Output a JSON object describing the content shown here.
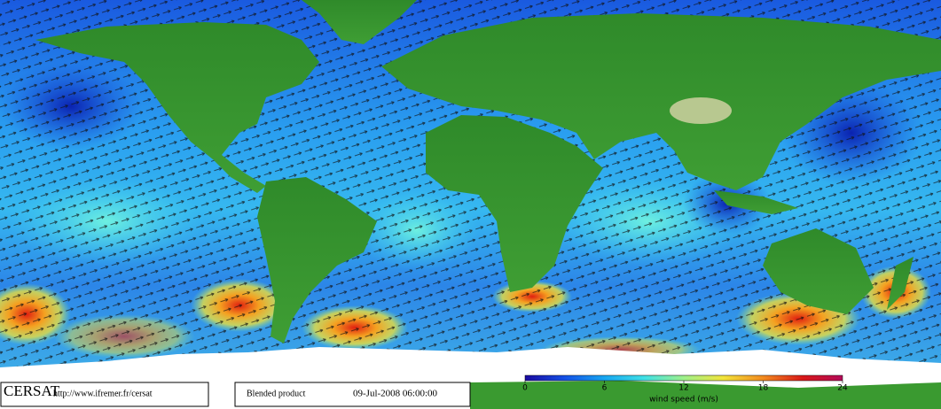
{
  "footer": {
    "brand": "CERSAT",
    "url": "http://www.ifremer.fr/cersat",
    "product": "Blended product",
    "date": "09-Jul-2008 06:00:00"
  },
  "colorbar": {
    "label": "wind speed (m/s)",
    "range": [
      0,
      24
    ],
    "ticks": [
      0,
      6,
      12,
      18,
      24
    ],
    "colors": [
      "#1a0aa0",
      "#1450e6",
      "#17a6f0",
      "#3fe0e6",
      "#9ef08a",
      "#f2e43a",
      "#f28a1e",
      "#d81818",
      "#b40a5a"
    ]
  }
}
